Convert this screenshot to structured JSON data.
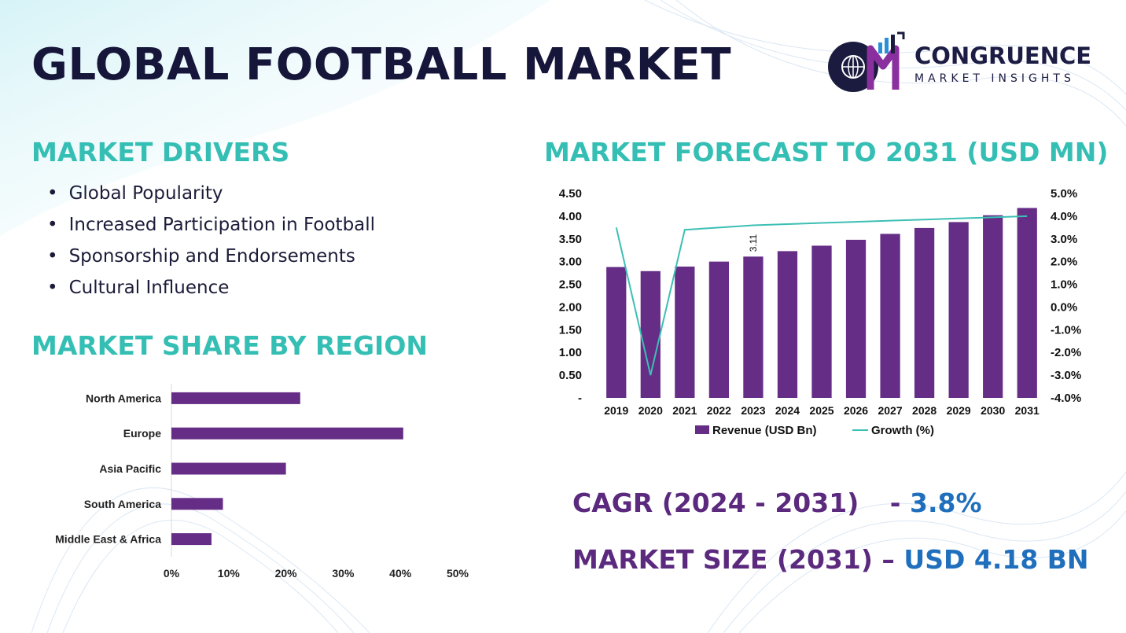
{
  "title": "GLOBAL FOOTBALL MARKET",
  "logo": {
    "name": "CONGRUENCE",
    "subtitle": "MARKET INSIGHTS"
  },
  "drivers": {
    "heading": "MARKET DRIVERS",
    "items": [
      "Global Popularity",
      "Increased Participation in Football",
      "Sponsorship and Endorsements",
      "Cultural Influence"
    ]
  },
  "forecast_heading": "MARKET FORECAST TO 2031 (USD MN)",
  "share_heading": "MARKET SHARE BY REGION",
  "stats": {
    "cagr_label": "CAGR (2024 - 2031)",
    "cagr_sep": "-",
    "cagr_value": "3.8%",
    "size_label": "MARKET SIZE (2031)",
    "size_sep": "–",
    "size_value": "USD 4.18 BN"
  },
  "colors": {
    "bar": "#652d86",
    "line": "#3cbfb4",
    "heading": "#35bfb4",
    "title": "#16163a",
    "value": "#1f6fbd"
  },
  "chart_data": [
    {
      "type": "bar",
      "title": "MARKET FORECAST TO 2031 (USD MN)",
      "categories": [
        "2019",
        "2020",
        "2021",
        "2022",
        "2023",
        "2024",
        "2025",
        "2026",
        "2027",
        "2028",
        "2029",
        "2030",
        "2031"
      ],
      "series": [
        {
          "name": "Revenue (USD Bn)",
          "type": "bar",
          "axis": "left",
          "values": [
            2.88,
            2.79,
            2.89,
            3.0,
            3.11,
            3.23,
            3.35,
            3.48,
            3.61,
            3.74,
            3.87,
            4.02,
            4.18
          ]
        },
        {
          "name": "Growth (%)",
          "type": "line",
          "axis": "right",
          "values": [
            3.5,
            -3.0,
            3.4,
            3.5,
            3.6,
            3.65,
            3.7,
            3.75,
            3.8,
            3.85,
            3.9,
            3.95,
            4.0
          ]
        }
      ],
      "data_labels": [
        {
          "category": "2023",
          "text": "3.11"
        }
      ],
      "y_ticks": [
        "-",
        "0.50",
        "1.00",
        "1.50",
        "2.00",
        "2.50",
        "3.00",
        "3.50",
        "4.00",
        "4.50"
      ],
      "y2_ticks": [
        "-4.0%",
        "-3.0%",
        "-2.0%",
        "-1.0%",
        "0.0%",
        "1.0%",
        "2.0%",
        "3.0%",
        "4.0%",
        "5.0%"
      ],
      "ylim": [
        0,
        4.5
      ],
      "y2lim": [
        -4,
        5
      ],
      "legend": "bottom",
      "grid": false
    },
    {
      "type": "bar",
      "orientation": "horizontal",
      "title": "MARKET SHARE BY REGION",
      "categories": [
        "North America",
        "Europe",
        "Asia Pacific",
        "South America",
        "Middle East & Africa"
      ],
      "values": [
        22.5,
        40.5,
        20.0,
        9.0,
        7.0
      ],
      "x_ticks": [
        "0%",
        "10%",
        "20%",
        "30%",
        "40%",
        "50%"
      ],
      "xlim": [
        0,
        50
      ],
      "grid": false
    }
  ]
}
